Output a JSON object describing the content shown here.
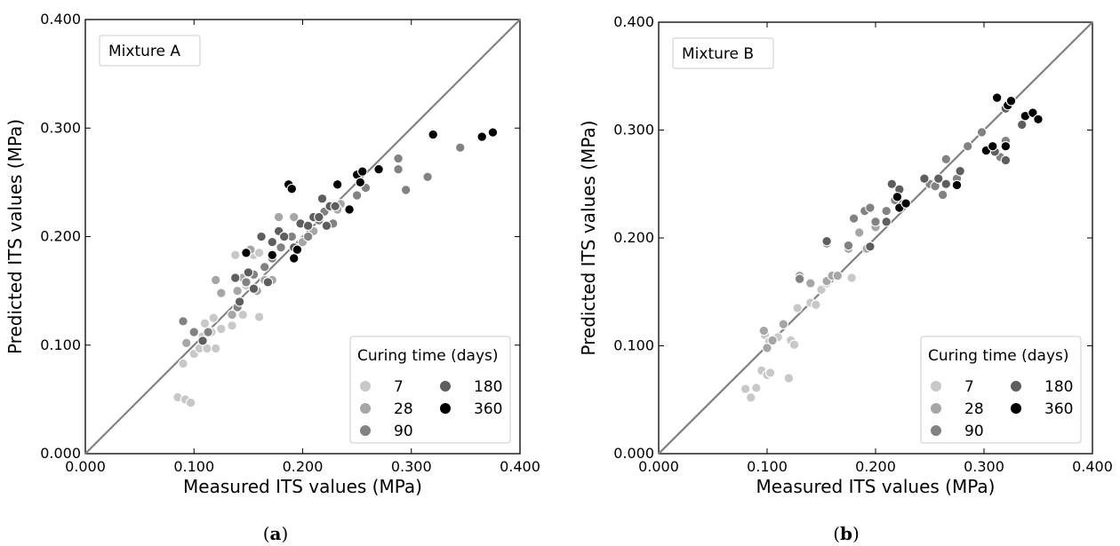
{
  "chart_data": [
    {
      "type": "scatter",
      "panel_label_parts": [
        "(",
        "a",
        ")"
      ],
      "annotation": "Mixture A",
      "xlabel": "Measured ITS values (MPa)",
      "ylabel": "Predicted ITS values (MPa)",
      "xlim": [
        0,
        0.4
      ],
      "ylim": [
        0,
        0.4
      ],
      "x_ticks": [
        "0.000",
        "0.100",
        "0.200",
        "0.300",
        "0.400"
      ],
      "y_ticks": [
        "0.000",
        "0.100",
        "0.200",
        "0.300",
        "0.400"
      ],
      "reference_line": "y = x",
      "legend": {
        "title": "Curing time (days)",
        "placement": "lower-right",
        "labels": [
          "7",
          "28",
          "90",
          "180",
          "360"
        ]
      },
      "series": [
        {
          "name": "7",
          "color": "#c8c8c8",
          "points": [
            [
              0.085,
              0.052
            ],
            [
              0.092,
              0.05
            ],
            [
              0.097,
              0.047
            ],
            [
              0.09,
              0.083
            ],
            [
              0.1,
              0.092
            ],
            [
              0.105,
              0.097
            ],
            [
              0.112,
              0.097
            ],
            [
              0.12,
              0.097
            ],
            [
              0.108,
              0.108
            ],
            [
              0.116,
              0.112
            ],
            [
              0.125,
              0.115
            ],
            [
              0.11,
              0.12
            ],
            [
              0.118,
              0.125
            ],
            [
              0.135,
              0.118
            ],
            [
              0.145,
              0.128
            ],
            [
              0.16,
              0.126
            ],
            [
              0.138,
              0.183
            ],
            [
              0.155,
              0.183
            ],
            [
              0.16,
              0.185
            ],
            [
              0.148,
              0.155
            ]
          ]
        },
        {
          "name": "28",
          "color": "#a6a6a6",
          "points": [
            [
              0.093,
              0.102
            ],
            [
              0.12,
              0.16
            ],
            [
              0.125,
              0.148
            ],
            [
              0.135,
              0.128
            ],
            [
              0.14,
              0.15
            ],
            [
              0.145,
              0.162
            ],
            [
              0.152,
              0.188
            ],
            [
              0.158,
              0.15
            ],
            [
              0.165,
              0.16
            ],
            [
              0.172,
              0.16
            ],
            [
              0.178,
              0.218
            ],
            [
              0.192,
              0.218
            ],
            [
              0.2,
              0.195
            ],
            [
              0.21,
              0.205
            ],
            [
              0.235,
              0.23
            ],
            [
              0.232,
              0.225
            ]
          ]
        },
        {
          "name": "90",
          "color": "#828282",
          "points": [
            [
              0.09,
              0.122
            ],
            [
              0.1,
              0.112
            ],
            [
              0.113,
              0.112
            ],
            [
              0.14,
              0.135
            ],
            [
              0.148,
              0.158
            ],
            [
              0.155,
              0.165
            ],
            [
              0.165,
              0.172
            ],
            [
              0.172,
              0.18
            ],
            [
              0.18,
              0.19
            ],
            [
              0.19,
              0.2
            ],
            [
              0.205,
              0.2
            ],
            [
              0.215,
              0.215
            ],
            [
              0.22,
              0.223
            ],
            [
              0.228,
              0.212
            ],
            [
              0.25,
              0.238
            ],
            [
              0.258,
              0.245
            ],
            [
              0.288,
              0.272
            ],
            [
              0.288,
              0.262
            ],
            [
              0.295,
              0.243
            ],
            [
              0.315,
              0.255
            ],
            [
              0.345,
              0.282
            ]
          ]
        },
        {
          "name": "180",
          "color": "#5e5e5e",
          "points": [
            [
              0.108,
              0.104
            ],
            [
              0.138,
              0.162
            ],
            [
              0.142,
              0.14
            ],
            [
              0.148,
              0.185
            ],
            [
              0.15,
              0.167
            ],
            [
              0.155,
              0.152
            ],
            [
              0.162,
              0.2
            ],
            [
              0.168,
              0.158
            ],
            [
              0.172,
              0.195
            ],
            [
              0.178,
              0.205
            ],
            [
              0.183,
              0.2
            ],
            [
              0.192,
              0.19
            ],
            [
              0.198,
              0.212
            ],
            [
              0.205,
              0.21
            ],
            [
              0.21,
              0.218
            ],
            [
              0.215,
              0.218
            ],
            [
              0.218,
              0.235
            ],
            [
              0.222,
              0.21
            ],
            [
              0.225,
              0.228
            ],
            [
              0.23,
              0.228
            ]
          ]
        },
        {
          "name": "360",
          "color": "#000000",
          "points": [
            [
              0.148,
              0.185
            ],
            [
              0.172,
              0.183
            ],
            [
              0.187,
              0.248
            ],
            [
              0.19,
              0.244
            ],
            [
              0.192,
              0.18
            ],
            [
              0.195,
              0.188
            ],
            [
              0.232,
              0.248
            ],
            [
              0.243,
              0.225
            ],
            [
              0.25,
              0.257
            ],
            [
              0.253,
              0.25
            ],
            [
              0.255,
              0.26
            ],
            [
              0.27,
              0.262
            ],
            [
              0.32,
              0.294
            ],
            [
              0.365,
              0.292
            ],
            [
              0.375,
              0.296
            ]
          ]
        }
      ]
    },
    {
      "type": "scatter",
      "panel_label_parts": [
        "(",
        "b",
        ")"
      ],
      "annotation": "Mixture B",
      "xlabel": "Measured ITS values (MPa)",
      "ylabel": "Predicted ITS values (MPa)",
      "xlim": [
        0,
        0.4
      ],
      "ylim": [
        0,
        0.4
      ],
      "x_ticks": [
        "0.000",
        "0.100",
        "0.200",
        "0.300",
        "0.400"
      ],
      "y_ticks": [
        "0.000",
        "0.100",
        "0.200",
        "0.300",
        "0.400"
      ],
      "reference_line": "y = x",
      "legend": {
        "title": "Curing time (days)",
        "placement": "lower-right",
        "labels": [
          "7",
          "28",
          "90",
          "180",
          "360"
        ]
      },
      "series": [
        {
          "name": "7",
          "color": "#c8c8c8",
          "points": [
            [
              0.08,
              0.06
            ],
            [
              0.085,
              0.052
            ],
            [
              0.09,
              0.061
            ],
            [
              0.095,
              0.077
            ],
            [
              0.1,
              0.073
            ],
            [
              0.103,
              0.075
            ],
            [
              0.12,
              0.07
            ],
            [
              0.098,
              0.11
            ],
            [
              0.102,
              0.104
            ],
            [
              0.11,
              0.108
            ],
            [
              0.122,
              0.105
            ],
            [
              0.125,
              0.101
            ],
            [
              0.128,
              0.135
            ],
            [
              0.14,
              0.14
            ],
            [
              0.145,
              0.138
            ],
            [
              0.15,
              0.152
            ],
            [
              0.155,
              0.158
            ],
            [
              0.178,
              0.163
            ]
          ]
        },
        {
          "name": "28",
          "color": "#a6a6a6",
          "points": [
            [
              0.097,
              0.114
            ],
            [
              0.1,
              0.098
            ],
            [
              0.105,
              0.105
            ],
            [
              0.115,
              0.12
            ],
            [
              0.13,
              0.165
            ],
            [
              0.14,
              0.158
            ],
            [
              0.155,
              0.16
            ],
            [
              0.16,
              0.165
            ],
            [
              0.165,
              0.165
            ],
            [
              0.175,
              0.19
            ],
            [
              0.185,
              0.205
            ],
            [
              0.192,
              0.19
            ],
            [
              0.2,
              0.21
            ],
            [
              0.21,
              0.225
            ]
          ]
        },
        {
          "name": "90",
          "color": "#828282",
          "points": [
            [
              0.13,
              0.162
            ],
            [
              0.155,
              0.195
            ],
            [
              0.175,
              0.193
            ],
            [
              0.18,
              0.218
            ],
            [
              0.19,
              0.225
            ],
            [
              0.195,
              0.228
            ],
            [
              0.2,
              0.215
            ],
            [
              0.21,
              0.225
            ],
            [
              0.218,
              0.235
            ],
            [
              0.225,
              0.232
            ],
            [
              0.25,
              0.25
            ],
            [
              0.255,
              0.248
            ],
            [
              0.262,
              0.24
            ],
            [
              0.265,
              0.273
            ],
            [
              0.275,
              0.255
            ],
            [
              0.285,
              0.285
            ],
            [
              0.298,
              0.298
            ],
            [
              0.31,
              0.28
            ],
            [
              0.32,
              0.29
            ],
            [
              0.315,
              0.275
            ]
          ]
        },
        {
          "name": "180",
          "color": "#5e5e5e",
          "points": [
            [
              0.155,
              0.197
            ],
            [
              0.195,
              0.192
            ],
            [
              0.21,
              0.215
            ],
            [
              0.215,
              0.25
            ],
            [
              0.222,
              0.245
            ],
            [
              0.245,
              0.255
            ],
            [
              0.258,
              0.255
            ],
            [
              0.265,
              0.25
            ],
            [
              0.278,
              0.262
            ],
            [
              0.31,
              0.28
            ],
            [
              0.32,
              0.272
            ],
            [
              0.335,
              0.305
            ],
            [
              0.32,
              0.32
            ]
          ]
        },
        {
          "name": "360",
          "color": "#000000",
          "points": [
            [
              0.22,
              0.238
            ],
            [
              0.222,
              0.228
            ],
            [
              0.228,
              0.232
            ],
            [
              0.275,
              0.249
            ],
            [
              0.302,
              0.281
            ],
            [
              0.308,
              0.285
            ],
            [
              0.312,
              0.33
            ],
            [
              0.32,
              0.285
            ],
            [
              0.322,
              0.323
            ],
            [
              0.325,
              0.327
            ],
            [
              0.338,
              0.313
            ],
            [
              0.345,
              0.316
            ],
            [
              0.35,
              0.31
            ]
          ]
        }
      ]
    }
  ]
}
